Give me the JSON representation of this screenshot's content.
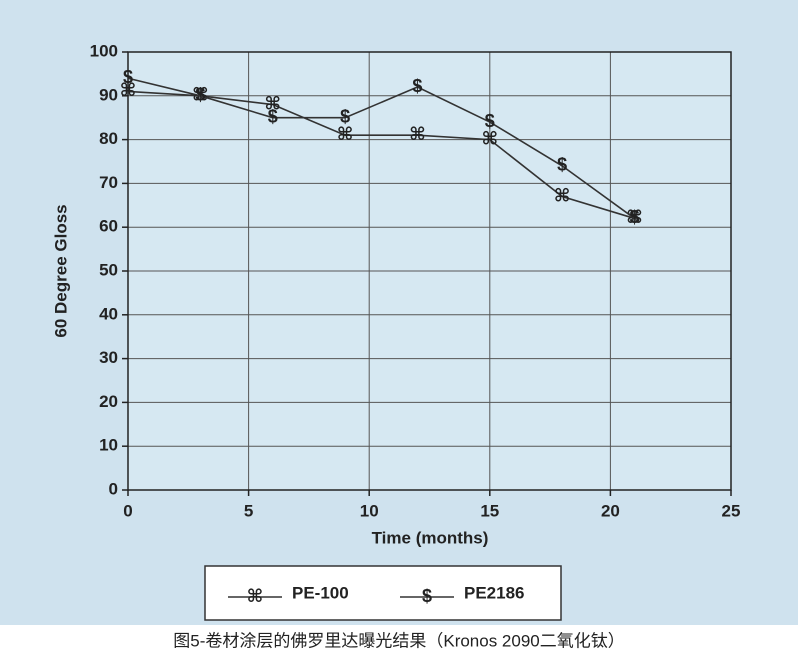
{
  "chart_data": {
    "type": "line",
    "xlabel": "Time (months)",
    "ylabel": "60 Degree Gloss",
    "caption": "图5-卷材涂层的佛罗里达曝光结果（Kronos 2090二氧化钛）",
    "x": [
      0,
      3,
      6,
      9,
      12,
      15,
      18,
      21
    ],
    "series": [
      {
        "name": "PE-100",
        "color": "#333333",
        "marker": "⌘",
        "values": [
          91,
          90,
          88,
          81,
          81,
          80,
          67,
          62
        ]
      },
      {
        "name": "PE2186",
        "color": "#333333",
        "marker": "$",
        "values": [
          94,
          90,
          85,
          85,
          92,
          84,
          74,
          62
        ]
      }
    ],
    "xlim": [
      0,
      25
    ],
    "xticks": [
      0,
      5,
      10,
      15,
      20,
      25
    ],
    "ylim": [
      0,
      100
    ],
    "yticks": [
      0,
      10,
      20,
      30,
      40,
      50,
      60,
      70,
      80,
      90,
      100
    ],
    "grid": true
  }
}
